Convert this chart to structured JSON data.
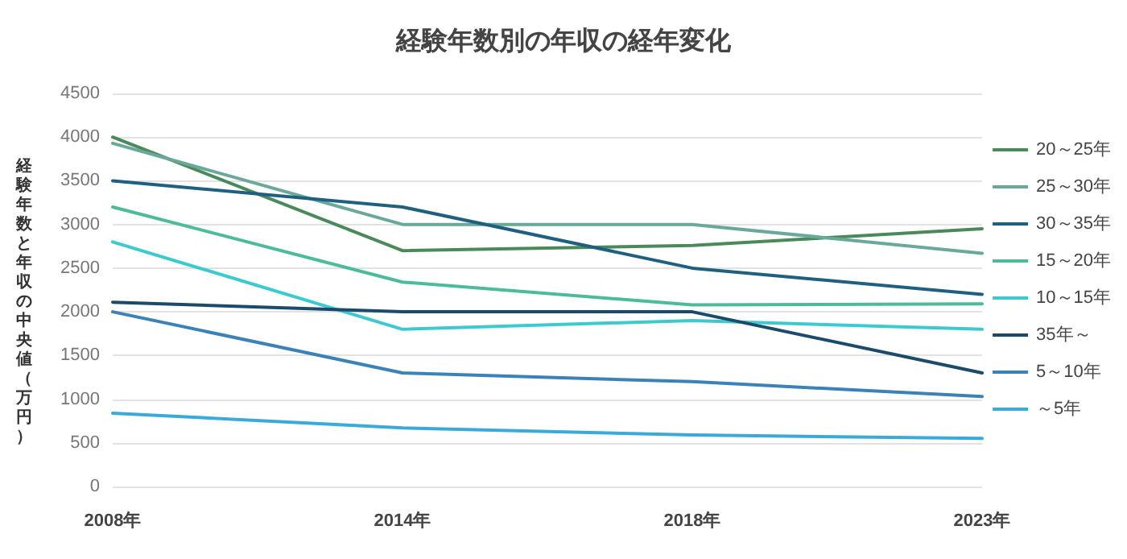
{
  "chart_data": {
    "type": "line",
    "title": "経験年数別の年収の経年変化",
    "ylabel": "経験年数と年収の中央値（万円）",
    "categories": [
      "2008年",
      "2014年",
      "2018年",
      "2023年"
    ],
    "series": [
      {
        "name": "20～25年",
        "color": "#4a8a5a",
        "values": [
          4000,
          2700,
          2760,
          2950
        ]
      },
      {
        "name": "25～30年",
        "color": "#6aa89a",
        "values": [
          3930,
          3000,
          3000,
          2670
        ]
      },
      {
        "name": "30～35年",
        "color": "#1f5f80",
        "values": [
          3500,
          3200,
          2500,
          2200
        ]
      },
      {
        "name": "15～20年",
        "color": "#4cbb9a",
        "values": [
          3200,
          2340,
          2080,
          2090
        ]
      },
      {
        "name": "10～15年",
        "color": "#3ccad0",
        "values": [
          2800,
          1800,
          1900,
          1800
        ]
      },
      {
        "name": "35年～",
        "color": "#1c4a6a",
        "values": [
          2110,
          2000,
          2000,
          1300
        ]
      },
      {
        "name": "5～10年",
        "color": "#3a82b8",
        "values": [
          2000,
          1300,
          1200,
          1030
        ]
      },
      {
        "name": "～5年",
        "color": "#3aaad8",
        "values": [
          840,
          670,
          590,
          550
        ]
      }
    ],
    "ylim": [
      0,
      4500
    ],
    "yticks": [
      0,
      500,
      1000,
      1500,
      2000,
      2500,
      3000,
      3500,
      4000,
      4500
    ],
    "grid": "y",
    "legend": "right",
    "marker": "none",
    "line_style": "solid"
  }
}
